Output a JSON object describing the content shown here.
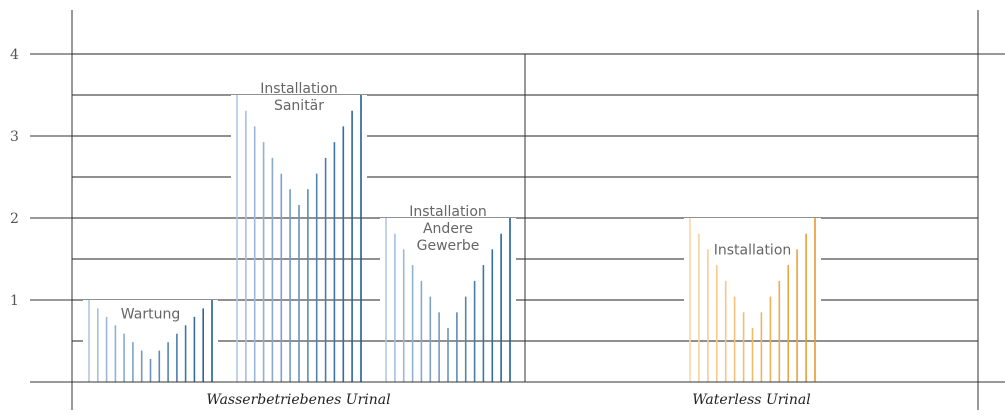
{
  "chart_data": {
    "type": "bar",
    "title": "",
    "xlabel": "",
    "ylabel": "",
    "ylim": [
      0,
      4
    ],
    "yticks": [
      1,
      2,
      3,
      4
    ],
    "grid": true,
    "categories": [
      "Wasserbetriebenes Urinal",
      "Waterless Urinal"
    ],
    "bars": [
      {
        "label": [
          "Wartung"
        ],
        "value": 1.0,
        "category": "Wasserbetriebenes Urinal",
        "color": "blue"
      },
      {
        "label": [
          "Installation",
          "Sanitär"
        ],
        "value": 3.5,
        "category": "Wasserbetriebenes Urinal",
        "color": "blue"
      },
      {
        "label": [
          "Installation",
          "Andere",
          "Gewerbe"
        ],
        "value": 2.0,
        "category": "Wasserbetriebenes Urinal",
        "color": "blue"
      },
      {
        "label": [
          "Installation"
        ],
        "value": 2.0,
        "category": "Waterless Urinal",
        "color": "orange"
      }
    ]
  },
  "colors": {
    "blue_light": "#b3c6e3",
    "blue_dark": "#1f5f95",
    "orange_light": "#fad7a8",
    "orange_dark": "#e79a2b",
    "axis": "#333333"
  }
}
